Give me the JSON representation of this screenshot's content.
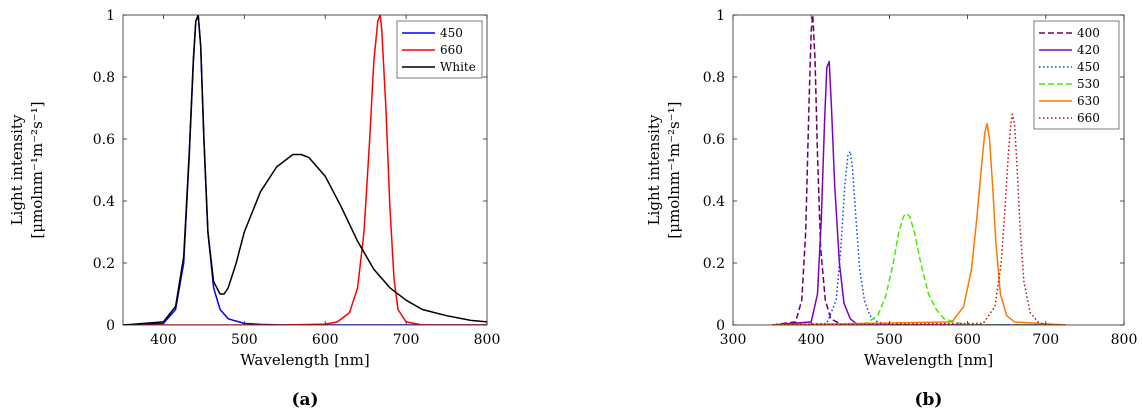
{
  "chart_data": [
    {
      "type": "line",
      "panel_label_text": "(a)",
      "panel_label": "a",
      "xlabel": "Wavelength [nm]",
      "ylabel_line1": "Light intensity",
      "ylabel_line2": "[μmolnm⁻¹m⁻²s⁻¹]",
      "xlim": [
        350,
        800
      ],
      "ylim": [
        0,
        1
      ],
      "xticks": [
        400,
        500,
        600,
        700,
        800
      ],
      "yticks": [
        0,
        0.2,
        0.4,
        0.6,
        0.8,
        1
      ],
      "ytick_labels": [
        "0",
        "0.2",
        "0.4",
        "0.6",
        "0.8",
        "1"
      ],
      "legend_position": "top-right",
      "grid": false,
      "series": [
        {
          "name": "450",
          "color": "#0000ff",
          "dash": "solid",
          "x": [
            350,
            400,
            415,
            425,
            432,
            437,
            440,
            443,
            446,
            450,
            455,
            462,
            470,
            480,
            500,
            520,
            550,
            600,
            650,
            700,
            750,
            800
          ],
          "y": [
            0,
            0.005,
            0.05,
            0.2,
            0.55,
            0.85,
            0.98,
            1.0,
            0.9,
            0.6,
            0.3,
            0.12,
            0.05,
            0.02,
            0.005,
            0.002,
            0,
            0,
            0,
            0,
            0,
            0
          ]
        },
        {
          "name": "660",
          "color": "#ff0000",
          "dash": "solid",
          "x": [
            350,
            500,
            550,
            600,
            615,
            630,
            640,
            648,
            655,
            660,
            665,
            668,
            670,
            675,
            680,
            685,
            690,
            700,
            720,
            750,
            800
          ],
          "y": [
            0,
            0,
            0,
            0.003,
            0.01,
            0.04,
            0.12,
            0.3,
            0.6,
            0.85,
            0.98,
            1.0,
            0.95,
            0.7,
            0.38,
            0.15,
            0.05,
            0.01,
            0,
            0,
            0
          ]
        },
        {
          "name": "White",
          "color": "#000000",
          "dash": "solid",
          "x": [
            350,
            400,
            415,
            425,
            432,
            437,
            440,
            443,
            446,
            450,
            455,
            462,
            470,
            475,
            480,
            490,
            500,
            520,
            540,
            560,
            570,
            580,
            600,
            620,
            640,
            660,
            680,
            700,
            720,
            750,
            780,
            800
          ],
          "y": [
            0,
            0.01,
            0.06,
            0.22,
            0.56,
            0.86,
            0.98,
            1.0,
            0.9,
            0.6,
            0.3,
            0.14,
            0.1,
            0.1,
            0.12,
            0.2,
            0.3,
            0.43,
            0.51,
            0.55,
            0.55,
            0.54,
            0.48,
            0.38,
            0.27,
            0.18,
            0.12,
            0.08,
            0.05,
            0.03,
            0.015,
            0.01
          ]
        }
      ]
    },
    {
      "type": "line",
      "panel_label_text": "(b)",
      "panel_label": "b",
      "xlabel": "Wavelength [nm]",
      "ylabel_line1": "Light intensity",
      "ylabel_line2": "[μmolnm⁻¹m⁻²s⁻¹]",
      "xlim": [
        300,
        800
      ],
      "ylim": [
        0,
        1
      ],
      "xticks": [
        300,
        400,
        500,
        600,
        700,
        800
      ],
      "yticks": [
        0,
        0.2,
        0.4,
        0.6,
        0.8,
        1
      ],
      "ytick_labels": [
        "0",
        "0.2",
        "0.4",
        "0.6",
        "0.8",
        "1"
      ],
      "legend_position": "top-right",
      "grid": false,
      "series": [
        {
          "name": "400",
          "color": "#6b0060",
          "dash": "dashed",
          "x": [
            350,
            380,
            388,
            393,
            397,
            400,
            402,
            405,
            408,
            412,
            418,
            425,
            440,
            500,
            600,
            725
          ],
          "y": [
            0,
            0.01,
            0.08,
            0.3,
            0.7,
            0.95,
            1.0,
            0.85,
            0.55,
            0.25,
            0.08,
            0.02,
            0,
            0,
            0,
            0
          ]
        },
        {
          "name": "420",
          "color": "#8000c0",
          "dash": "solid",
          "x": [
            350,
            400,
            408,
            413,
            417,
            420,
            423,
            426,
            430,
            436,
            442,
            450,
            460,
            500,
            600,
            725
          ],
          "y": [
            0,
            0.01,
            0.1,
            0.35,
            0.65,
            0.83,
            0.85,
            0.7,
            0.45,
            0.2,
            0.07,
            0.02,
            0,
            0,
            0,
            0
          ]
        },
        {
          "name": "450",
          "color": "#0040ff",
          "dash": "dotted",
          "x": [
            350,
            420,
            432,
            438,
            443,
            447,
            450,
            453,
            457,
            462,
            468,
            475,
            485,
            500,
            600,
            725
          ],
          "y": [
            0,
            0.005,
            0.08,
            0.25,
            0.45,
            0.55,
            0.56,
            0.5,
            0.35,
            0.18,
            0.08,
            0.03,
            0.01,
            0,
            0,
            0
          ]
        },
        {
          "name": "530",
          "color": "#44ee00",
          "dash": "dashed",
          "x": [
            350,
            470,
            485,
            495,
            505,
            512,
            518,
            522,
            526,
            532,
            540,
            550,
            560,
            570,
            590,
            600,
            725
          ],
          "y": [
            0,
            0.005,
            0.03,
            0.09,
            0.2,
            0.3,
            0.35,
            0.36,
            0.35,
            0.3,
            0.2,
            0.1,
            0.05,
            0.02,
            0.005,
            0,
            0
          ]
        },
        {
          "name": "630",
          "color": "#ff7700",
          "dash": "solid",
          "x": [
            350,
            580,
            595,
            605,
            612,
            618,
            622,
            625,
            628,
            632,
            636,
            642,
            650,
            660,
            725
          ],
          "y": [
            0,
            0.01,
            0.06,
            0.18,
            0.35,
            0.52,
            0.62,
            0.65,
            0.6,
            0.45,
            0.27,
            0.1,
            0.03,
            0.01,
            0
          ]
        },
        {
          "name": "660",
          "color": "#dd0000",
          "dash": "dotted",
          "x": [
            350,
            620,
            635,
            643,
            648,
            652,
            655,
            657,
            660,
            663,
            667,
            672,
            680,
            690,
            700,
            725
          ],
          "y": [
            0,
            0.005,
            0.06,
            0.2,
            0.38,
            0.55,
            0.64,
            0.68,
            0.65,
            0.52,
            0.32,
            0.14,
            0.04,
            0.01,
            0,
            0
          ]
        }
      ]
    }
  ]
}
